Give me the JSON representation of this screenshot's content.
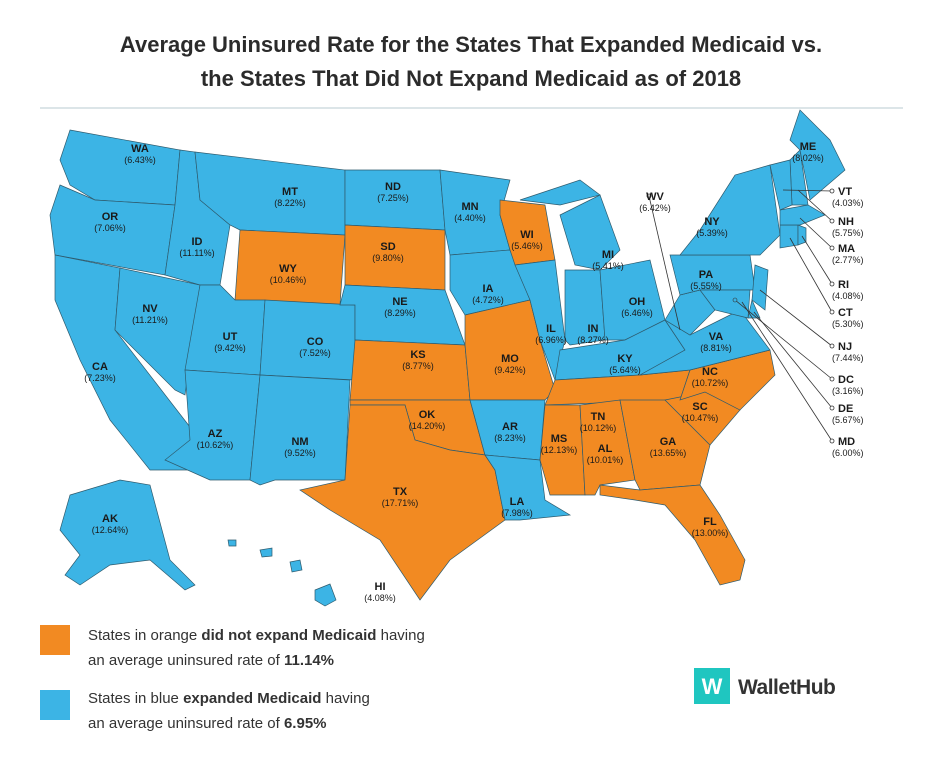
{
  "title": [
    "Average Uninsured Rate for the States That Expanded Medicaid vs.",
    "the States That Did Not Expand Medicaid as of 2018"
  ],
  "colors": {
    "expanded": "#3cb4e5",
    "not_expanded": "#f28a22"
  },
  "states": [
    {
      "abbr": "WA",
      "rate": "(6.43%)",
      "expanded": true
    },
    {
      "abbr": "OR",
      "rate": "(7.06%)",
      "expanded": true
    },
    {
      "abbr": "CA",
      "rate": "(7.23%)",
      "expanded": true
    },
    {
      "abbr": "NV",
      "rate": "(11.21%)",
      "expanded": true
    },
    {
      "abbr": "ID",
      "rate": "(11.11%)",
      "expanded": true
    },
    {
      "abbr": "MT",
      "rate": "(8.22%)",
      "expanded": true
    },
    {
      "abbr": "WY",
      "rate": "(10.46%)",
      "expanded": false
    },
    {
      "abbr": "UT",
      "rate": "(9.42%)",
      "expanded": true
    },
    {
      "abbr": "CO",
      "rate": "(7.52%)",
      "expanded": true
    },
    {
      "abbr": "AZ",
      "rate": "(10.62%)",
      "expanded": true
    },
    {
      "abbr": "NM",
      "rate": "(9.52%)",
      "expanded": true
    },
    {
      "abbr": "ND",
      "rate": "(7.25%)",
      "expanded": true
    },
    {
      "abbr": "SD",
      "rate": "(9.80%)",
      "expanded": false
    },
    {
      "abbr": "NE",
      "rate": "(8.29%)",
      "expanded": true
    },
    {
      "abbr": "KS",
      "rate": "(8.77%)",
      "expanded": false
    },
    {
      "abbr": "OK",
      "rate": "(14.20%)",
      "expanded": false
    },
    {
      "abbr": "TX",
      "rate": "(17.71%)",
      "expanded": false
    },
    {
      "abbr": "MN",
      "rate": "(4.40%)",
      "expanded": true
    },
    {
      "abbr": "IA",
      "rate": "(4.72%)",
      "expanded": true
    },
    {
      "abbr": "MO",
      "rate": "(9.42%)",
      "expanded": false
    },
    {
      "abbr": "AR",
      "rate": "(8.23%)",
      "expanded": true
    },
    {
      "abbr": "LA",
      "rate": "(7.98%)",
      "expanded": true
    },
    {
      "abbr": "WI",
      "rate": "(5.46%)",
      "expanded": false
    },
    {
      "abbr": "IL",
      "rate": "(6.96%)",
      "expanded": true
    },
    {
      "abbr": "MI",
      "rate": "(5.41%)",
      "expanded": true
    },
    {
      "abbr": "IN",
      "rate": "(8.27%)",
      "expanded": true
    },
    {
      "abbr": "OH",
      "rate": "(6.46%)",
      "expanded": true
    },
    {
      "abbr": "KY",
      "rate": "(5.64%)",
      "expanded": true
    },
    {
      "abbr": "TN",
      "rate": "(10.12%)",
      "expanded": false
    },
    {
      "abbr": "MS",
      "rate": "(12.13%)",
      "expanded": false
    },
    {
      "abbr": "AL",
      "rate": "(10.01%)",
      "expanded": false
    },
    {
      "abbr": "GA",
      "rate": "(13.65%)",
      "expanded": false
    },
    {
      "abbr": "FL",
      "rate": "(13.00%)",
      "expanded": false
    },
    {
      "abbr": "SC",
      "rate": "(10.47%)",
      "expanded": false
    },
    {
      "abbr": "NC",
      "rate": "(10.72%)",
      "expanded": false
    },
    {
      "abbr": "VA",
      "rate": "(8.81%)",
      "expanded": true
    },
    {
      "abbr": "WV",
      "rate": "(6.42%)",
      "expanded": true
    },
    {
      "abbr": "PA",
      "rate": "(5.55%)",
      "expanded": true
    },
    {
      "abbr": "NY",
      "rate": "(5.39%)",
      "expanded": true
    },
    {
      "abbr": "NJ",
      "rate": "(7.44%)",
      "expanded": true
    },
    {
      "abbr": "DE",
      "rate": "(5.67%)",
      "expanded": true
    },
    {
      "abbr": "MD",
      "rate": "(6.00%)",
      "expanded": true
    },
    {
      "abbr": "DC",
      "rate": "(3.16%)",
      "expanded": true
    },
    {
      "abbr": "CT",
      "rate": "(5.30%)",
      "expanded": true
    },
    {
      "abbr": "RI",
      "rate": "(4.08%)",
      "expanded": true
    },
    {
      "abbr": "MA",
      "rate": "(2.77%)",
      "expanded": true
    },
    {
      "abbr": "NH",
      "rate": "(5.75%)",
      "expanded": true
    },
    {
      "abbr": "VT",
      "rate": "(4.03%)",
      "expanded": true
    },
    {
      "abbr": "ME",
      "rate": "(8.02%)",
      "expanded": true
    },
    {
      "abbr": "AK",
      "rate": "(12.64%)",
      "expanded": true
    },
    {
      "abbr": "HI",
      "rate": "(4.08%)",
      "expanded": true
    }
  ],
  "legend": [
    {
      "before": "States in orange ",
      "bold": "did not expand Medicaid",
      "after": " having",
      "line2": "an average uninsured rate of ",
      "rate": "11.14%"
    },
    {
      "before": "States in blue ",
      "bold": "expanded Medicaid",
      "after": " having",
      "line2": "an average uninsured rate of ",
      "rate": "6.95%"
    }
  ],
  "logo": {
    "mark": "W",
    "name": "WalletHub"
  }
}
